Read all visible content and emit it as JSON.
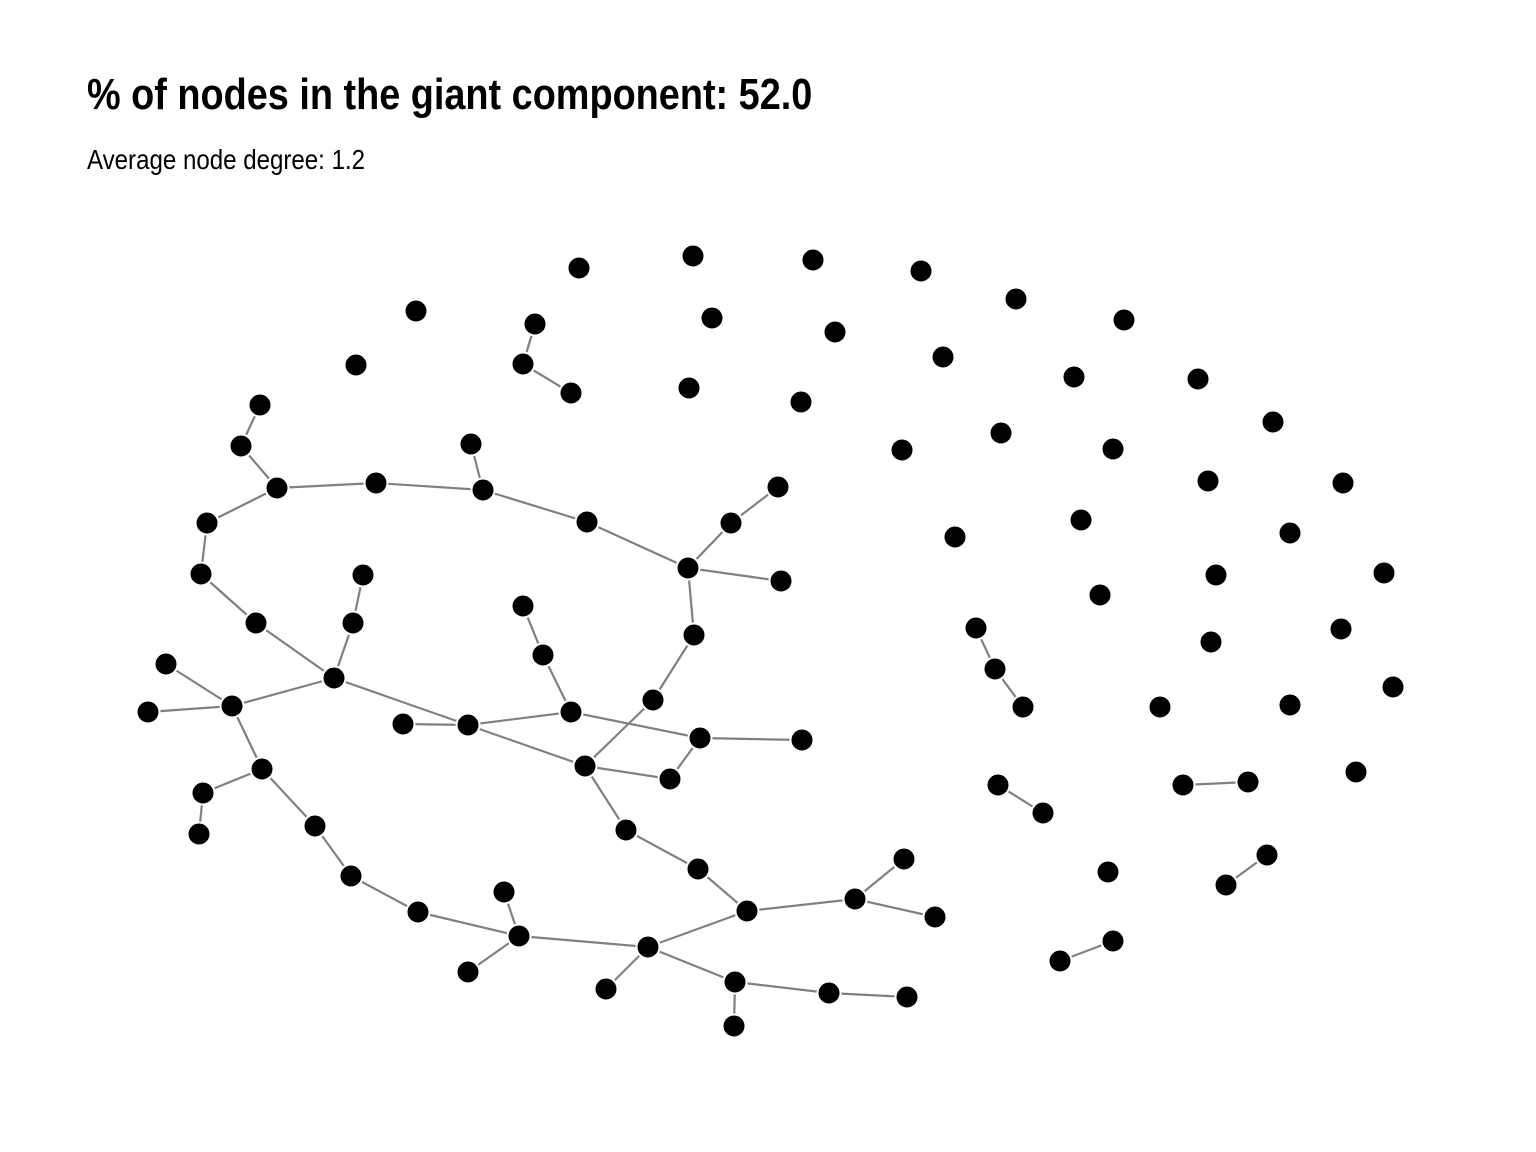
{
  "title": "% of nodes in the giant component: 52.0",
  "subtitle": "Average node degree: 1.2",
  "colors": {
    "node": "#000000",
    "node_stroke": "#ffffff",
    "edge": "#808080",
    "background": "#ffffff"
  }
}
